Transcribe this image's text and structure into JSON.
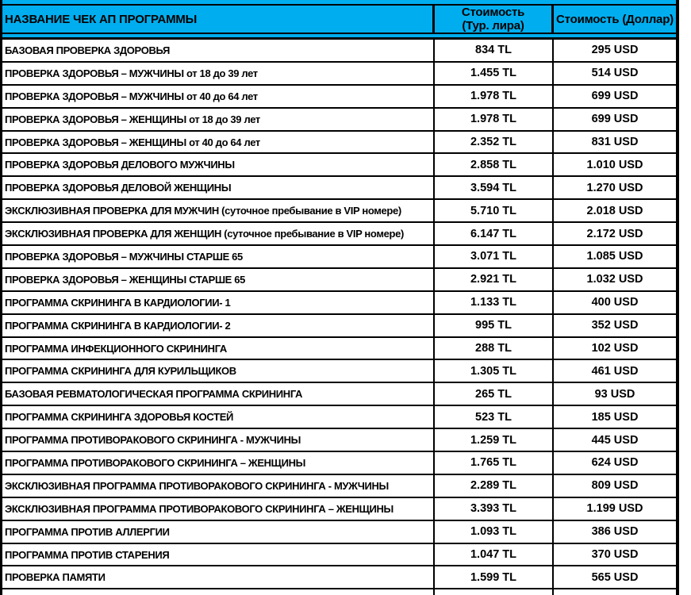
{
  "table": {
    "header": {
      "name_label": "НАЗВАНИЕ ЧЕК АП ПРОГРАММЫ",
      "tl_label_line1": "Стоимость",
      "tl_label_line2": "(Тур. лира)",
      "usd_label": "Стоимость (Доллар)"
    },
    "rows": [
      {
        "name": "БАЗОВАЯ ПРОВЕРКА ЗДОРОВЬЯ",
        "tl": "834 TL",
        "usd": "295 USD"
      },
      {
        "name": "ПРОВЕРКА ЗДОРОВЬЯ – МУЖЧИНЫ от 18 до 39 лет",
        "tl": "1.455 TL",
        "usd": "514 USD"
      },
      {
        "name": "ПРОВЕРКА ЗДОРОВЬЯ – МУЖЧИНЫ от 40 до 64 лет",
        "tl": "1.978 TL",
        "usd": "699 USD"
      },
      {
        "name": "ПРОВЕРКА ЗДОРОВЬЯ – ЖЕНЩИНЫ от 18 до 39 лет",
        "tl": "1.978 TL",
        "usd": "699 USD"
      },
      {
        "name": "ПРОВЕРКА ЗДОРОВЬЯ – ЖЕНЩИНЫ от 40 до 64 лет",
        "tl": "2.352 TL",
        "usd": "831 USD"
      },
      {
        "name": "ПРОВЕРКА ЗДОРОВЬЯ ДЕЛОВОГО МУЖЧИНЫ",
        "tl": "2.858 TL",
        "usd": "1.010 USD"
      },
      {
        "name": "ПРОВЕРКА ЗДОРОВЬЯ ДЕЛОВОЙ ЖЕНЩИНЫ",
        "tl": "3.594 TL",
        "usd": "1.270 USD"
      },
      {
        "name": "ЭКСКЛЮЗИВНАЯ ПРОВЕРКА ДЛЯ МУЖЧИН (суточное пребывание в VIP номере)",
        "tl": "5.710 TL",
        "usd": "2.018 USD"
      },
      {
        "name": "ЭКСКЛЮЗИВНАЯ ПРОВЕРКА ДЛЯ ЖЕНЩИН (суточное пребывание в VIP номере)",
        "tl": "6.147 TL",
        "usd": "2.172 USD"
      },
      {
        "name": "ПРОВЕРКА ЗДОРОВЬЯ – МУЖЧИНЫ СТАРШЕ 65",
        "tl": "3.071 TL",
        "usd": "1.085 USD"
      },
      {
        "name": "ПРОВЕРКА ЗДОРОВЬЯ – ЖЕНЩИНЫ СТАРШЕ 65",
        "tl": "2.921 TL",
        "usd": "1.032 USD"
      },
      {
        "name": "ПРОГРАММА СКРИНИНГА В КАРДИОЛОГИИ- 1",
        "tl": "1.133 TL",
        "usd": "400 USD"
      },
      {
        "name": "ПРОГРАММА СКРИНИНГА В КАРДИОЛОГИИ- 2",
        "tl": "995 TL",
        "usd": "352 USD"
      },
      {
        "name": "ПРОГРАММА ИНФЕКЦИОННОГО СКРИНИНГА",
        "tl": "288 TL",
        "usd": "102 USD"
      },
      {
        "name": "ПРОГРАММА СКРИНИНГА ДЛЯ КУРИЛЬЩИКОВ",
        "tl": "1.305 TL",
        "usd": "461 USD"
      },
      {
        "name": "БАЗОВАЯ РЕВМАТОЛОГИЧЕСКАЯ ПРОГРАММА СКРИНИНГА",
        "tl": "265 TL",
        "usd": "93 USD"
      },
      {
        "name": "ПРОГРАММА СКРИНИНГА ЗДОРОВЬЯ КОСТЕЙ",
        "tl": "523 TL",
        "usd": "185 USD"
      },
      {
        "name": "ПРОГРАММА ПРОТИВОРАКОВОГО СКРИНИНГА - МУЖЧИНЫ",
        "tl": "1.259 TL",
        "usd": "445 USD"
      },
      {
        "name": "ПРОГРАММА ПРОТИВОРАКОВОГО СКРИНИНГА – ЖЕНЩИНЫ",
        "tl": "1.765 TL",
        "usd": "624 USD"
      },
      {
        "name": "ЭКСКЛЮЗИВНАЯ ПРОГРАММА ПРОТИВОРАКОВОГО СКРИНИНГА - МУЖЧИНЫ",
        "tl": "2.289 TL",
        "usd": "809 USD"
      },
      {
        "name": "ЭКСКЛЮЗИВНАЯ ПРОГРАММА ПРОТИВОРАКОВОГО СКРИНИНГА – ЖЕНЩИНЫ",
        "tl": "3.393 TL",
        "usd": "1.199 USD"
      },
      {
        "name": "ПРОГРАММА ПРОТИВ АЛЛЕРГИИ",
        "tl": "1.093 TL",
        "usd": "386 USD"
      },
      {
        "name": "ПРОГРАММА ПРОТИВ СТАРЕНИЯ",
        "tl": "1.047 TL",
        "usd": "370 USD"
      },
      {
        "name": "ПРОВЕРКА ПАМЯТИ",
        "tl": "1.599 TL",
        "usd": "565 USD"
      }
    ],
    "colors": {
      "header_bg": "#00AEEF",
      "border": "#000000",
      "row_bg": "#FFFFFF",
      "text": "#000000"
    }
  }
}
